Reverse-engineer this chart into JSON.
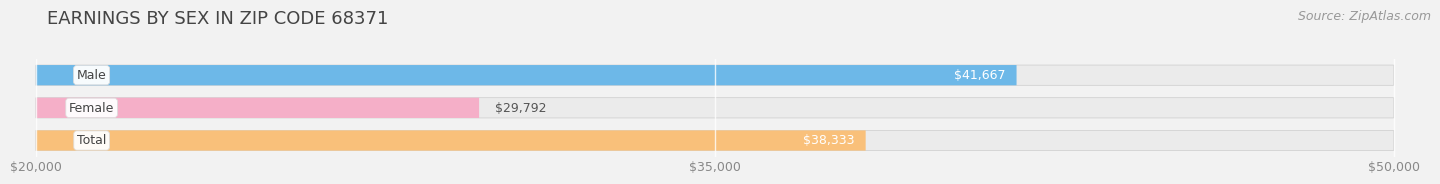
{
  "title": "EARNINGS BY SEX IN ZIP CODE 68371",
  "source": "Source: ZipAtlas.com",
  "categories": [
    "Male",
    "Female",
    "Total"
  ],
  "values": [
    41667,
    29792,
    38333
  ],
  "bar_colors": [
    "#6db8e8",
    "#f5afc8",
    "#f9c07a"
  ],
  "label_texts": [
    "$41,667",
    "$29,792",
    "$38,333"
  ],
  "label_color_inside": [
    "white",
    "white",
    "white"
  ],
  "label_inside": [
    true,
    false,
    true
  ],
  "xmin": 20000,
  "xmax": 50000,
  "xticks": [
    20000,
    35000,
    50000
  ],
  "xtick_labels": [
    "$20,000",
    "$35,000",
    "$50,000"
  ],
  "background_color": "#f2f2f2",
  "bar_background_color": "#ebebeb",
  "title_fontsize": 13,
  "source_fontsize": 9,
  "label_fontsize": 9,
  "tick_fontsize": 9,
  "category_fontsize": 9
}
